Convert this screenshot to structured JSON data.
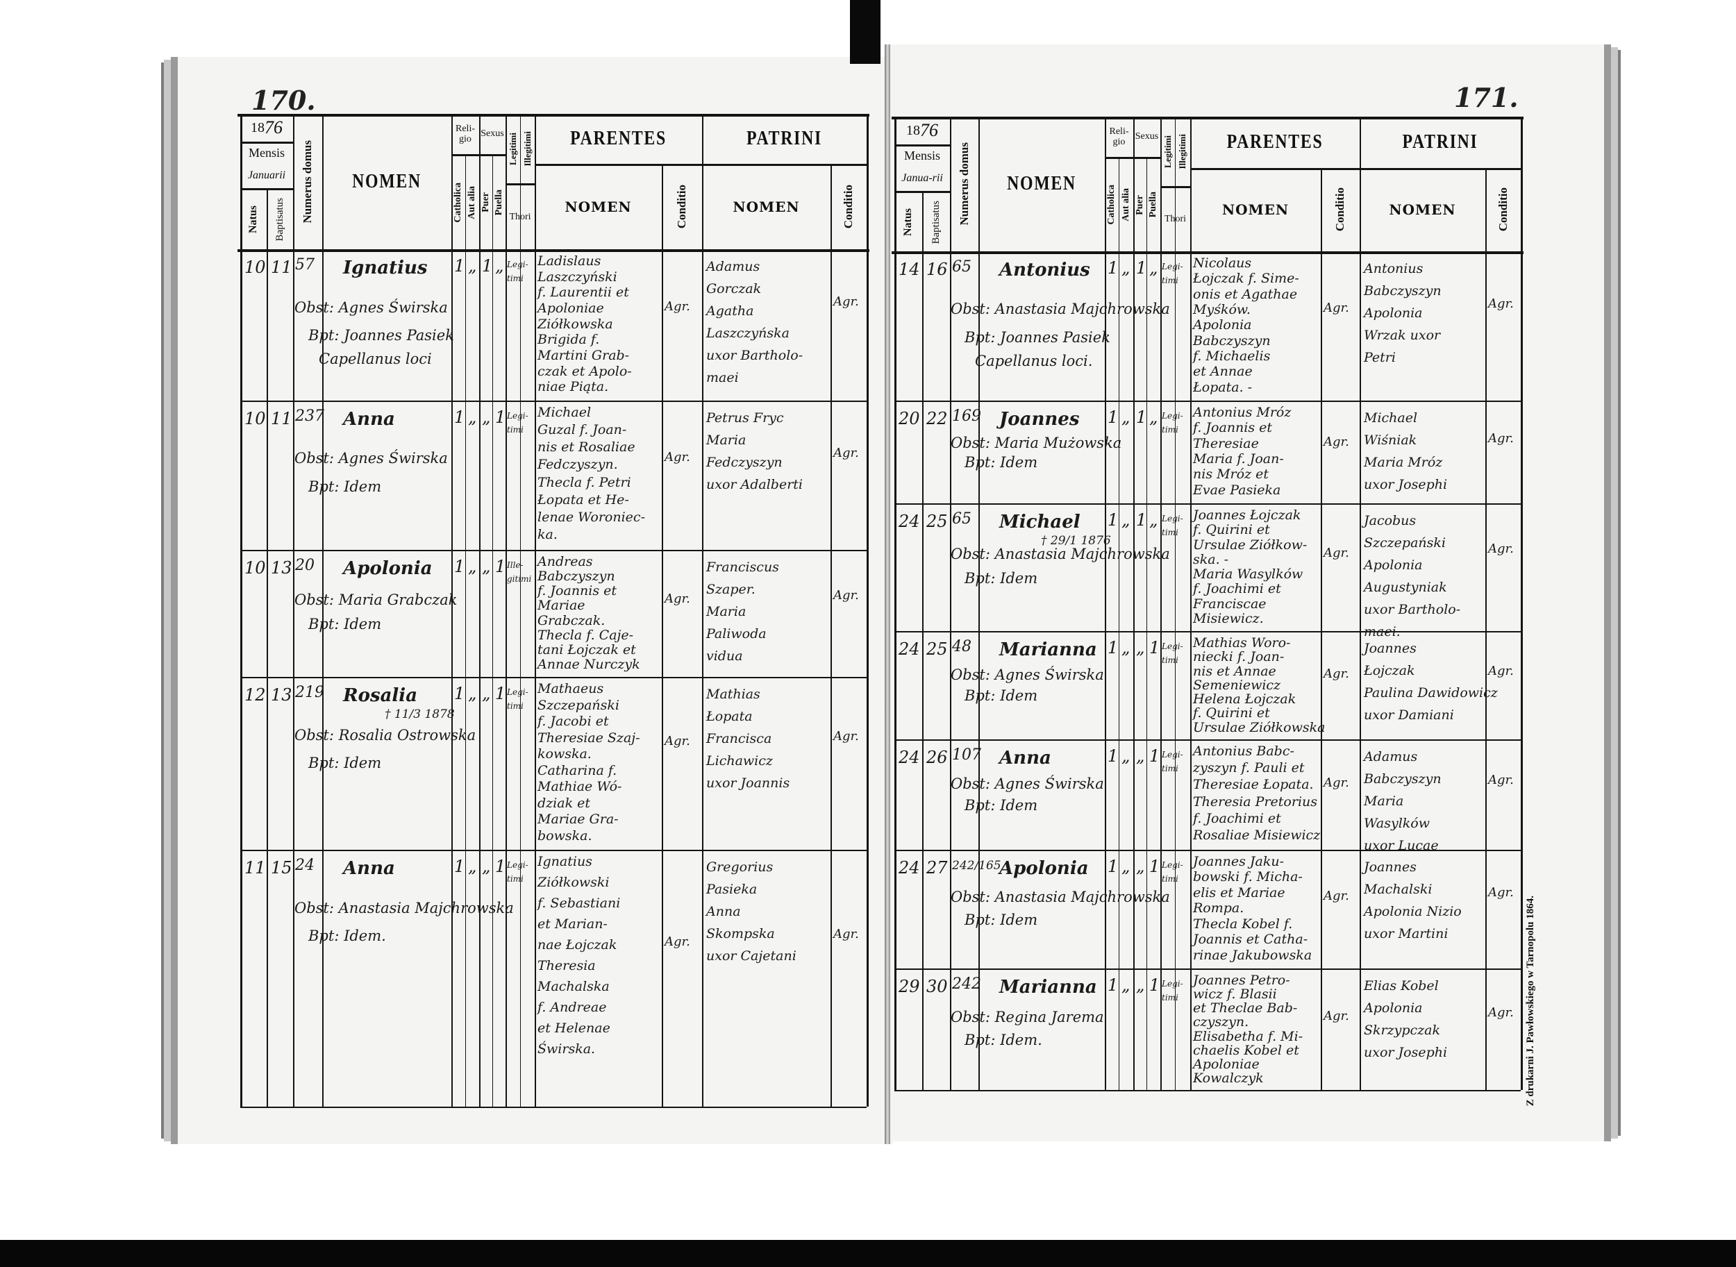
{
  "header": {
    "year_prefix": "18",
    "mensis": "Mensis",
    "natus": "Natus",
    "baptisatus": "Baptisatus",
    "numerus_domus": "Numerus domus",
    "nomen": "NOMEN",
    "religio": "Reli-gio",
    "catholica": "Catholica",
    "aut_alia": "Aut alia",
    "sexus": "Sexus",
    "puer": "Puer",
    "puella": "Puella",
    "legitimi": "Legitimi",
    "illegitimi": "Illegitimi",
    "thori": "Thori",
    "parentes": "PARENTES",
    "patrini": "PATRINI",
    "sub_nomen": "NOMEN",
    "conditio": "Conditio"
  },
  "printer_imprint": "Z drukarni J. Pawłowskiego w Tarnopolu 1864.",
  "pages": [
    {
      "page_number": "170.",
      "year_suffix": "76",
      "month": "Januarii",
      "entries": [
        {
          "natus": "10",
          "baptisatus": "11",
          "numerus": "57",
          "nomen": "Ignatius",
          "nomen_note": "",
          "obstetrix": "Obst: Agnes Świrska",
          "baptizans": [
            "Bpt: Joannes Pasiek",
            "Capellanus loci"
          ],
          "catholica": "1",
          "aut_alia": "„",
          "puer": "1",
          "puella": "„",
          "thori": "Legi-timi",
          "parentes": [
            "Ladislaus",
            "Laszczyński",
            "f. Laurentii et",
            "Apoloniae",
            "Ziółkowska",
            "Brigida f.",
            "Martini Grab-",
            "czak et Apolo-",
            "niae Piąta."
          ],
          "parentes_conditio": "Agr.",
          "patrini": [
            "Adamus",
            "Gorczak",
            "Agatha",
            "Laszczyńska",
            "uxor Bartholo-",
            "maei"
          ],
          "patrini_conditio": "Agr."
        },
        {
          "natus": "10",
          "baptisatus": "11",
          "numerus": "237",
          "nomen": "Anna",
          "nomen_note": "",
          "obstetrix": "Obst: Agnes Świrska",
          "baptizans": [
            "Bpt: Idem"
          ],
          "catholica": "1",
          "aut_alia": "„",
          "puer": "„",
          "puella": "1",
          "thori": "Legi-timi",
          "parentes": [
            "Michael",
            "Guzal f. Joan-",
            "nis et Rosaliae",
            "Fedczyszyn.",
            "Thecla f. Petri",
            "Łopata et He-",
            "lenae Woroniec-",
            "ka."
          ],
          "parentes_conditio": "Agr.",
          "patrini": [
            "Petrus Fryc",
            "Maria",
            "Fedczyszyn",
            "uxor Adalberti"
          ],
          "patrini_conditio": "Agr."
        },
        {
          "natus": "10",
          "baptisatus": "13",
          "numerus": "20",
          "nomen": "Apolonia",
          "nomen_note": "",
          "obstetrix": "Obst: Maria Grabczak",
          "baptizans": [
            "Bpt: Idem"
          ],
          "catholica": "1",
          "aut_alia": "„",
          "puer": "„",
          "puella": "1",
          "thori": "Ille-gitimi",
          "parentes": [
            "Andreas",
            "Babczyszyn",
            "f. Joannis et",
            "Mariae",
            "Grabczak.",
            "Thecla f. Caje-",
            "tani Łojczak et",
            "Annae Nurczyk"
          ],
          "parentes_conditio": "Agr.",
          "patrini": [
            "Franciscus",
            "Szaper.",
            "Maria",
            "Paliwoda",
            "vidua"
          ],
          "patrini_conditio": "Agr."
        },
        {
          "natus": "12",
          "baptisatus": "13",
          "numerus": "219",
          "nomen": "Rosalia",
          "nomen_note": "† 11/3 1878",
          "obstetrix": "Obst: Rosalia Ostrowska",
          "baptizans": [
            "Bpt: Idem"
          ],
          "catholica": "1",
          "aut_alia": "„",
          "puer": "„",
          "puella": "1",
          "thori": "Legi-timi",
          "parentes": [
            "Mathaeus",
            "Szczepański",
            "f. Jacobi et",
            "Theresiae Szaj-",
            "kowska.",
            "Catharina f.",
            "Mathiae Wó-",
            "dziak et",
            "Mariae Gra-",
            "bowska."
          ],
          "parentes_conditio": "Agr.",
          "patrini": [
            "Mathias",
            "Łopata",
            "Francisca",
            "Lichawicz",
            "uxor Joannis"
          ],
          "patrini_conditio": "Agr."
        },
        {
          "natus": "11",
          "baptisatus": "15",
          "numerus": "24",
          "nomen": "Anna",
          "nomen_note": "",
          "obstetrix": "Obst: Anastasia Majchrowska",
          "baptizans": [
            "Bpt: Idem."
          ],
          "catholica": "1",
          "aut_alia": "„",
          "puer": "„",
          "puella": "1",
          "thori": "Legi-timi",
          "parentes": [
            "Ignatius",
            "Ziółkowski",
            "f. Sebastiani",
            "et Marian-",
            "nae Łojczak",
            "Theresia",
            "Machalska",
            "f. Andreae",
            "et Helenae",
            "Świrska."
          ],
          "parentes_conditio": "Agr.",
          "patrini": [
            "Gregorius",
            "Pasieka",
            "Anna",
            "Skompska",
            "uxor Cajetani"
          ],
          "patrini_conditio": "Agr."
        }
      ]
    },
    {
      "page_number": "171.",
      "year_suffix": "76",
      "month": "Janua-rii",
      "entries": [
        {
          "natus": "14",
          "baptisatus": "16",
          "numerus": "65",
          "nomen": "Antonius",
          "nomen_note": "",
          "obstetrix": "Obst: Anastasia Majchrowska",
          "baptizans": [
            "Bpt: Joannes Pasiek",
            "Capellanus loci."
          ],
          "catholica": "1",
          "aut_alia": "„",
          "puer": "1",
          "puella": "„",
          "thori": "Legi-timi",
          "parentes": [
            "Nicolaus",
            "Łojczak f. Sime-",
            "onis et Agathae",
            "Myśków.",
            "Apolonia",
            "Babczyszyn",
            "f. Michaelis",
            "et Annae",
            "Łopata. -"
          ],
          "parentes_conditio": "Agr.",
          "patrini": [
            "Antonius",
            "Babczyszyn",
            "Apolonia",
            "Wrzak uxor",
            "Petri"
          ],
          "patrini_conditio": "Agr."
        },
        {
          "natus": "20",
          "baptisatus": "22",
          "numerus": "169",
          "nomen": "Joannes",
          "nomen_note": "",
          "obstetrix": "Obst: Maria Mużowska",
          "baptizans": [
            "Bpt: Idem"
          ],
          "catholica": "1",
          "aut_alia": "„",
          "puer": "1",
          "puella": "„",
          "thori": "Legi-timi",
          "parentes": [
            "Antonius Mróz",
            "f. Joannis et",
            "Theresiae",
            "Maria f. Joan-",
            "nis Mróz et",
            "Evae Pasieka"
          ],
          "parentes_conditio": "Agr.",
          "patrini": [
            "Michael",
            "Wiśniak",
            "Maria Mróz",
            "uxor Josephi"
          ],
          "patrini_conditio": "Agr."
        },
        {
          "natus": "24",
          "baptisatus": "25",
          "numerus": "65",
          "nomen": "Michael",
          "nomen_note": "† 29/1 1876",
          "obstetrix": "Obst: Anastasia Majchrowska",
          "baptizans": [
            "Bpt: Idem"
          ],
          "catholica": "1",
          "aut_alia": "„",
          "puer": "1",
          "puella": "„",
          "thori": "Legi-timi",
          "parentes": [
            "Joannes Łojczak",
            "f. Quirini et",
            "Ursulae Ziółkow-",
            "ska. -",
            "Maria Wasylków",
            "f. Joachimi et",
            "Franciscae",
            "Misiewicz."
          ],
          "parentes_conditio": "Agr.",
          "patrini": [
            "Jacobus",
            "Szczepański",
            "Apolonia",
            "Augustyniak",
            "uxor Bartholo-",
            "maei."
          ],
          "patrini_conditio": "Agr."
        },
        {
          "natus": "24",
          "baptisatus": "25",
          "numerus": "48",
          "nomen": "Marianna",
          "nomen_note": "",
          "obstetrix": "Obst: Agnes Świrska",
          "baptizans": [
            "Bpt: Idem"
          ],
          "catholica": "1",
          "aut_alia": "„",
          "puer": "„",
          "puella": "1",
          "thori": "Legi-timi",
          "parentes": [
            "Mathias Woro-",
            "niecki f. Joan-",
            "nis et Annae",
            "Semeniewicz",
            "Helena Łojczak",
            "f. Quirini et",
            "Ursulae Ziółkowska"
          ],
          "parentes_conditio": "Agr.",
          "patrini": [
            "Joannes",
            "Łojczak",
            "Paulina Dawidowicz",
            "uxor Damiani"
          ],
          "patrini_conditio": "Agr."
        },
        {
          "natus": "24",
          "baptisatus": "26",
          "numerus": "107",
          "nomen": "Anna",
          "nomen_note": "",
          "obstetrix": "Obst: Agnes Świrska",
          "baptizans": [
            "Bpt: Idem"
          ],
          "catholica": "1",
          "aut_alia": "„",
          "puer": "„",
          "puella": "1",
          "thori": "Legi-timi",
          "parentes": [
            "Antonius Babc-",
            "zyszyn f. Pauli et",
            "Theresiae Łopata.",
            "Theresia Pretorius",
            "f. Joachimi et",
            "Rosaliae Misiewicz"
          ],
          "parentes_conditio": "Agr.",
          "patrini": [
            "Adamus",
            "Babczyszyn",
            "Maria",
            "Wasylków",
            "uxor Lucae"
          ],
          "patrini_conditio": "Agr."
        },
        {
          "natus": "24",
          "baptisatus": "27",
          "numerus": "242/165",
          "nomen": "Apolonia",
          "nomen_note": "",
          "obstetrix": "Obst: Anastasia Majchrowska",
          "baptizans": [
            "Bpt: Idem"
          ],
          "catholica": "1",
          "aut_alia": "„",
          "puer": "„",
          "puella": "1",
          "thori": "Legi-timi",
          "parentes": [
            "Joannes Jaku-",
            "bowski f. Micha-",
            "elis et Mariae",
            "Rompa.",
            "Thecla Kobel f.",
            "Joannis et Catha-",
            "rinae Jakubowska"
          ],
          "parentes_conditio": "Agr.",
          "patrini": [
            "Joannes",
            "Machalski",
            "Apolonia Nizio",
            "uxor Martini"
          ],
          "patrini_conditio": "Agr."
        },
        {
          "natus": "29",
          "baptisatus": "30",
          "numerus": "242",
          "nomen": "Marianna",
          "nomen_note": "",
          "obstetrix": "Obst: Regina Jarema",
          "baptizans": [
            "Bpt: Idem."
          ],
          "catholica": "1",
          "aut_alia": "„",
          "puer": "„",
          "puella": "1",
          "thori": "Legi-timi",
          "parentes": [
            "Joannes Petro-",
            "wicz f. Blasii",
            "et Theclae Bab-",
            "czyszyn.",
            "Elisabetha f. Mi-",
            "chaelis Kobel et",
            "Apoloniae",
            "Kowalczyk"
          ],
          "parentes_conditio": "Agr.",
          "patrini": [
            "Elias Kobel",
            "Apolonia",
            "Skrzypczak",
            "uxor Josephi"
          ],
          "patrini_conditio": "Agr."
        }
      ]
    }
  ]
}
